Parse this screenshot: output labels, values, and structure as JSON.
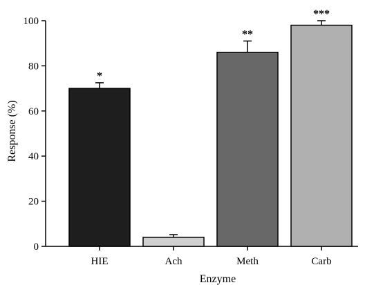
{
  "chart_data": {
    "type": "bar",
    "categories": [
      "HIE",
      "Ach",
      "Meth",
      "Carb"
    ],
    "values": [
      70,
      4,
      86,
      98
    ],
    "errors": [
      2.5,
      1.2,
      5,
      2
    ],
    "annotations": [
      "*",
      "",
      "**",
      "***"
    ],
    "colors": [
      "#1e1e1e",
      "#d0d0d0",
      "#686868",
      "#b0b0b0"
    ],
    "xlabel": "Enzyme",
    "ylabel": "Response (%)",
    "ylim": [
      0,
      100
    ],
    "yticks": [
      0,
      20,
      40,
      60,
      80,
      100
    ],
    "grid": false,
    "legend": "none"
  }
}
